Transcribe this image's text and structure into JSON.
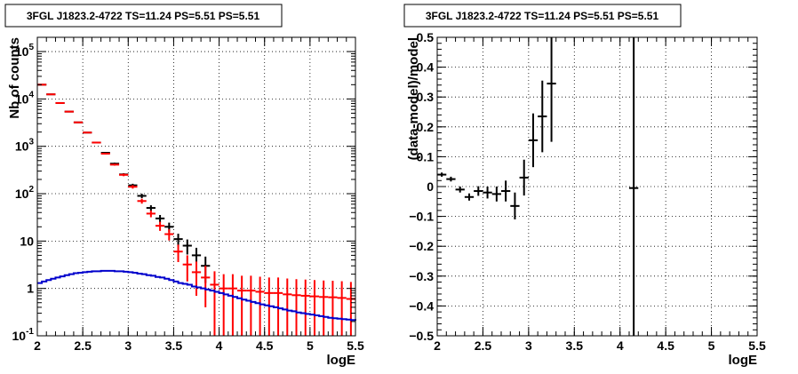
{
  "colors": {
    "data": "#000000",
    "model_counts": "#ff0000",
    "model_curve": "#0000cc",
    "grid": "#000000"
  },
  "chart_data": [
    {
      "type": "scatter",
      "title": "3FGL J1823.2-4722 TS=11.24 PS=5.51 PS=5.51",
      "xlabel": "logE",
      "ylabel": "Nb of counts",
      "xlim": [
        2,
        5.5
      ],
      "ylim": [
        0.1,
        200000
      ],
      "yscale": "log",
      "grid": true,
      "x_ticks": [
        "2",
        "2.5",
        "3",
        "3.5",
        "4",
        "4.5",
        "5",
        "5.5"
      ],
      "y_ticks": [
        {
          "base": "10",
          "exp": "-1",
          "value": 0.1
        },
        {
          "base": "1",
          "exp": "",
          "value": 1
        },
        {
          "base": "10",
          "exp": "",
          "value": 10
        },
        {
          "base": "10",
          "exp": "2",
          "value": 100
        },
        {
          "base": "10",
          "exp": "3",
          "value": 1000
        },
        {
          "base": "10",
          "exp": "4",
          "value": 10000
        },
        {
          "base": "10",
          "exp": "5",
          "value": 100000
        }
      ],
      "series": [
        {
          "role": "data",
          "color": "#000000",
          "points": [
            {
              "x": 2.05,
              "y": 20000,
              "err": 140
            },
            {
              "x": 2.15,
              "y": 12500,
              "err": 110
            },
            {
              "x": 2.25,
              "y": 8200,
              "err": 90
            },
            {
              "x": 2.35,
              "y": 5400,
              "err": 75
            },
            {
              "x": 2.45,
              "y": 3200,
              "err": 57
            },
            {
              "x": 2.55,
              "y": 1950,
              "err": 44
            },
            {
              "x": 2.65,
              "y": 1200,
              "err": 35
            },
            {
              "x": 2.75,
              "y": 730,
              "err": 27
            },
            {
              "x": 2.85,
              "y": 430,
              "err": 21
            },
            {
              "x": 2.95,
              "y": 255,
              "err": 16
            },
            {
              "x": 3.05,
              "y": 150,
              "err": 12
            },
            {
              "x": 3.15,
              "y": 90,
              "err": 9.5
            },
            {
              "x": 3.25,
              "y": 50,
              "err": 7
            },
            {
              "x": 3.35,
              "y": 30,
              "err": 5.5
            },
            {
              "x": 3.45,
              "y": 20,
              "err": 4.5
            },
            {
              "x": 3.55,
              "y": 11,
              "err": 3.3
            },
            {
              "x": 3.65,
              "y": 8,
              "err": 2.8
            },
            {
              "x": 3.75,
              "y": 5,
              "err": 2.2
            },
            {
              "x": 3.85,
              "y": 3,
              "err": 1.7
            }
          ]
        },
        {
          "role": "model_counts",
          "color": "#ff0000",
          "points": [
            {
              "x": 2.05,
              "y": 20000,
              "err": 140
            },
            {
              "x": 2.15,
              "y": 12500,
              "err": 110
            },
            {
              "x": 2.25,
              "y": 8200,
              "err": 90
            },
            {
              "x": 2.35,
              "y": 5400,
              "err": 75
            },
            {
              "x": 2.45,
              "y": 3200,
              "err": 57
            },
            {
              "x": 2.55,
              "y": 1950,
              "err": 44
            },
            {
              "x": 2.65,
              "y": 1200,
              "err": 35
            },
            {
              "x": 2.75,
              "y": 700,
              "err": 26
            },
            {
              "x": 2.85,
              "y": 410,
              "err": 20
            },
            {
              "x": 2.95,
              "y": 250,
              "err": 16
            },
            {
              "x": 3.05,
              "y": 140,
              "err": 12
            },
            {
              "x": 3.15,
              "y": 70,
              "err": 8.4
            },
            {
              "x": 3.25,
              "y": 38,
              "err": 6.2
            },
            {
              "x": 3.35,
              "y": 21,
              "err": 4.6
            },
            {
              "x": 3.45,
              "y": 14,
              "err": 3.7
            },
            {
              "x": 3.55,
              "y": 6,
              "err": 2.4
            },
            {
              "x": 3.65,
              "y": 3.2,
              "err": 1.8
            },
            {
              "x": 3.75,
              "y": 2.2,
              "err": 1.5
            },
            {
              "x": 3.85,
              "y": 1.7,
              "err": 1.3
            },
            {
              "x": 3.95,
              "y": 1.2,
              "err": 1.1
            },
            {
              "x": 4.05,
              "y": 1.0,
              "err": 1.0
            },
            {
              "x": 4.15,
              "y": 1.0,
              "err": 1.0
            },
            {
              "x": 4.25,
              "y": 0.9,
              "err": 0.95
            },
            {
              "x": 4.35,
              "y": 0.9,
              "err": 0.95
            },
            {
              "x": 4.45,
              "y": 0.85,
              "err": 0.92
            },
            {
              "x": 4.55,
              "y": 0.8,
              "err": 0.9
            },
            {
              "x": 4.65,
              "y": 0.8,
              "err": 0.9
            },
            {
              "x": 4.75,
              "y": 0.75,
              "err": 0.87
            },
            {
              "x": 4.85,
              "y": 0.72,
              "err": 0.85
            },
            {
              "x": 4.95,
              "y": 0.7,
              "err": 0.84
            },
            {
              "x": 5.05,
              "y": 0.68,
              "err": 0.82
            },
            {
              "x": 5.15,
              "y": 0.66,
              "err": 0.81
            },
            {
              "x": 5.25,
              "y": 0.65,
              "err": 0.8
            },
            {
              "x": 5.35,
              "y": 0.63,
              "err": 0.79
            },
            {
              "x": 5.45,
              "y": 0.6,
              "err": 0.77
            }
          ]
        },
        {
          "role": "model_curve",
          "color": "#0000cc",
          "x": [
            2.0,
            2.05,
            2.1,
            2.15,
            2.2,
            2.25,
            2.3,
            2.35,
            2.4,
            2.45,
            2.5,
            2.55,
            2.6,
            2.65,
            2.7,
            2.75,
            2.8,
            2.85,
            2.9,
            2.95,
            3.0,
            3.05,
            3.1,
            3.15,
            3.2,
            3.25,
            3.3,
            3.35,
            3.4,
            3.45,
            3.5,
            3.55,
            3.6,
            3.65,
            3.7,
            3.75,
            3.8,
            3.85,
            3.9,
            3.95,
            4.0,
            4.05,
            4.1,
            4.15,
            4.2,
            4.25,
            4.3,
            4.35,
            4.4,
            4.45,
            4.5,
            4.55,
            4.6,
            4.65,
            4.7,
            4.75,
            4.8,
            4.85,
            4.9,
            4.95,
            5.0,
            5.05,
            5.1,
            5.15,
            5.2,
            5.25,
            5.3,
            5.35,
            5.4,
            5.45,
            5.5
          ],
          "y": [
            1.3,
            1.4,
            1.5,
            1.6,
            1.7,
            1.8,
            1.9,
            2.0,
            2.1,
            2.15,
            2.2,
            2.25,
            2.3,
            2.3,
            2.35,
            2.35,
            2.35,
            2.3,
            2.3,
            2.25,
            2.2,
            2.15,
            2.05,
            2.0,
            1.9,
            1.85,
            1.75,
            1.7,
            1.6,
            1.5,
            1.4,
            1.3,
            1.25,
            1.2,
            1.1,
            1.05,
            1.0,
            0.95,
            0.9,
            0.85,
            0.8,
            0.75,
            0.7,
            0.66,
            0.62,
            0.58,
            0.55,
            0.52,
            0.49,
            0.46,
            0.44,
            0.42,
            0.4,
            0.38,
            0.36,
            0.34,
            0.33,
            0.31,
            0.3,
            0.29,
            0.28,
            0.27,
            0.26,
            0.25,
            0.24,
            0.235,
            0.23,
            0.225,
            0.22,
            0.215,
            0.21
          ]
        }
      ]
    },
    {
      "type": "scatter",
      "title": "3FGL J1823.2-4722 TS=11.24 PS=5.51 PS=5.51",
      "xlabel": "logE",
      "ylabel": "(data-model)/model",
      "xlim": [
        2,
        5.5
      ],
      "ylim": [
        -0.5,
        0.5
      ],
      "yscale": "linear",
      "grid": true,
      "x_ticks": [
        "2",
        "2.5",
        "3",
        "3.5",
        "4",
        "4.5",
        "5",
        "5.5"
      ],
      "y_ticks": [
        "−0.5",
        "−0.4",
        "−0.3",
        "−0.2",
        "−0.1",
        "0",
        "0.1",
        "0.2",
        "0.3",
        "0.4",
        "0.5"
      ],
      "y_tick_values": [
        -0.5,
        -0.4,
        -0.3,
        -0.2,
        -0.1,
        0,
        0.1,
        0.2,
        0.3,
        0.4,
        0.5
      ],
      "series": [
        {
          "role": "residuals",
          "color": "#000000",
          "points": [
            {
              "x": 2.05,
              "y": 0.04,
              "err": 0.007
            },
            {
              "x": 2.15,
              "y": 0.025,
              "err": 0.008
            },
            {
              "x": 2.25,
              "y": -0.01,
              "err": 0.01
            },
            {
              "x": 2.35,
              "y": -0.035,
              "err": 0.012
            },
            {
              "x": 2.45,
              "y": -0.015,
              "err": 0.016
            },
            {
              "x": 2.55,
              "y": -0.02,
              "err": 0.02
            },
            {
              "x": 2.65,
              "y": -0.025,
              "err": 0.025
            },
            {
              "x": 2.75,
              "y": -0.015,
              "err": 0.035
            },
            {
              "x": 2.85,
              "y": -0.065,
              "err": 0.045
            },
            {
              "x": 2.95,
              "y": 0.03,
              "err": 0.06
            },
            {
              "x": 3.05,
              "y": 0.155,
              "err": 0.09
            },
            {
              "x": 3.15,
              "y": 0.235,
              "err": 0.12
            },
            {
              "x": 3.25,
              "y": 0.345,
              "err": 0.195
            },
            {
              "x": 4.15,
              "y": -0.005,
              "err": 1.0
            }
          ]
        }
      ]
    }
  ]
}
